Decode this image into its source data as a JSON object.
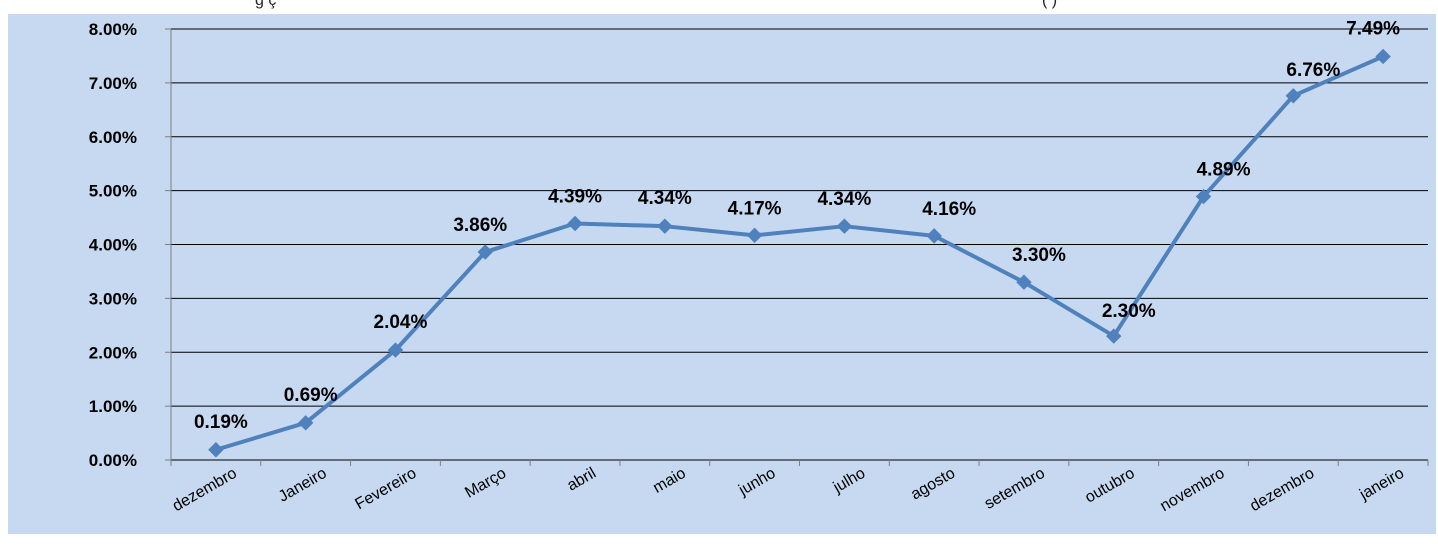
{
  "caption": {
    "left_text": "g   ç",
    "right_text": "(   )"
  },
  "colors": {
    "plot_background": "#c6d9f1",
    "line": "#4f81bd",
    "gridline": "#000000",
    "text": "#000000"
  },
  "chart_data": {
    "type": "line",
    "categories": [
      "dezembro",
      "Janeiro",
      "Fevereiro",
      "Março",
      "abril",
      "maio",
      "junho",
      "julho",
      "agosto",
      "setembro",
      "outubro",
      "novembro",
      "dezembro",
      "janeiro"
    ],
    "series": [
      {
        "values": [
          0.19,
          0.69,
          2.04,
          3.86,
          4.39,
          4.34,
          4.17,
          4.34,
          4.16,
          3.3,
          2.3,
          4.89,
          6.76,
          7.49
        ],
        "labels": [
          "0.19%",
          "0.69%",
          "2.04%",
          "3.86%",
          "4.39%",
          "4.34%",
          "4.17%",
          "4.34%",
          "4.16%",
          "3.30%",
          "2.30%",
          "4.89%",
          "6.76%",
          "7.49%"
        ],
        "marker": "diamond"
      }
    ],
    "y_ticks": [
      "0.00%",
      "1.00%",
      "2.00%",
      "3.00%",
      "4.00%",
      "5.00%",
      "6.00%",
      "7.00%",
      "8.00%"
    ],
    "ylim": [
      0,
      8
    ],
    "grid": true,
    "legend": "none",
    "title": "",
    "xlabel": "",
    "ylabel": ""
  }
}
